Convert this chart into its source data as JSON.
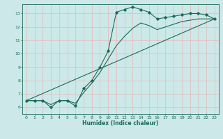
{
  "bg_color": "#cce8e8",
  "grid_color": "#e8b8b8",
  "line_color": "#1a6b5a",
  "xlabel": "Humidex (Indice chaleur)",
  "xlim": [
    -0.5,
    23.5
  ],
  "ylim": [
    5.5,
    13.7
  ],
  "yticks": [
    6,
    7,
    8,
    9,
    10,
    11,
    12,
    13
  ],
  "xticks": [
    0,
    1,
    2,
    3,
    4,
    5,
    6,
    7,
    8,
    9,
    10,
    11,
    12,
    13,
    14,
    15,
    16,
    17,
    18,
    19,
    20,
    21,
    22,
    23
  ],
  "line1_x": [
    0,
    1,
    2,
    3,
    4,
    5,
    6,
    7,
    8,
    9,
    10,
    11,
    12,
    13,
    14,
    15,
    16,
    17,
    18,
    19,
    20,
    21,
    22,
    23
  ],
  "line1_y": [
    6.5,
    6.5,
    6.5,
    6.0,
    6.5,
    6.5,
    6.1,
    7.4,
    8.0,
    9.0,
    10.2,
    13.1,
    13.3,
    13.5,
    13.3,
    13.1,
    12.6,
    12.7,
    12.8,
    12.9,
    13.0,
    13.0,
    12.9,
    12.6
  ],
  "line2_x": [
    0,
    1,
    2,
    3,
    4,
    5,
    6,
    7,
    8,
    9,
    10,
    11,
    12,
    13,
    14,
    15,
    16,
    17,
    18,
    19,
    20,
    21,
    22,
    23
  ],
  "line2_y": [
    6.5,
    6.5,
    6.5,
    6.2,
    6.5,
    6.5,
    6.3,
    7.1,
    7.8,
    8.6,
    9.6,
    10.6,
    11.3,
    11.9,
    12.3,
    12.1,
    11.8,
    12.0,
    12.2,
    12.4,
    12.5,
    12.6,
    12.6,
    12.6
  ],
  "line3_x": [
    0,
    23
  ],
  "line3_y": [
    6.5,
    12.6
  ]
}
